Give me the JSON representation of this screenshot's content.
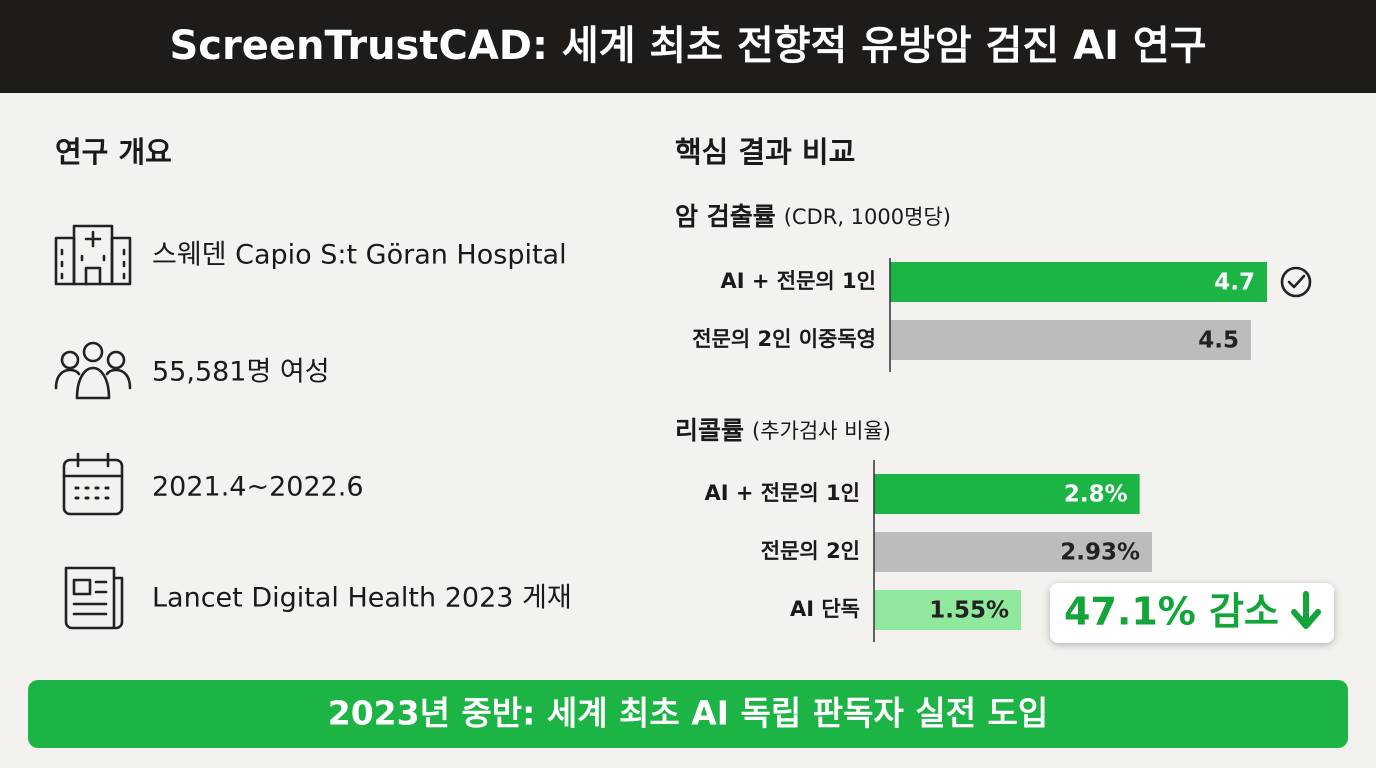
{
  "header": {
    "title": "ScreenTrustCAD: 세계 최초 전향적 유방암 검진 AI 연구"
  },
  "overview": {
    "title": "연구 개요",
    "items": [
      "스웨덴 Capio S:t Göran Hospital",
      "55,581명 여성",
      "2021.4~2022.6",
      "Lancet Digital Health 2023 게재"
    ]
  },
  "results": {
    "title": "핵심 결과 비교"
  },
  "chart_data": [
    {
      "type": "bar",
      "orientation": "horizontal",
      "title": "암 검출률",
      "subtitle": "(CDR, 1000명당)",
      "categories": [
        "AI + 전문의 1인",
        "전문의 2인 이중독영"
      ],
      "values": [
        4.7,
        4.5
      ],
      "colors": [
        "#1db446",
        "#bcbcbc"
      ],
      "label_colors": [
        "#ffffff",
        "#222222"
      ]
    },
    {
      "type": "bar",
      "orientation": "horizontal",
      "title": "리콜률",
      "subtitle": "(추가검사 비율)",
      "categories": [
        "AI + 전문의 1인",
        "전문의 2인",
        "AI 단독"
      ],
      "values": [
        2.8,
        2.93,
        1.55
      ],
      "value_labels": [
        "2.8%",
        "2.93%",
        "1.55%"
      ],
      "colors": [
        "#1db446",
        "#bcbcbc",
        "#8fe89c"
      ],
      "label_colors": [
        "#ffffff",
        "#222222",
        "#222222"
      ],
      "annotation": "47.1% 감소"
    }
  ],
  "footer": {
    "banner": "2023년 중반: 세계 최초 AI 독립 판독자 실전 도입"
  }
}
